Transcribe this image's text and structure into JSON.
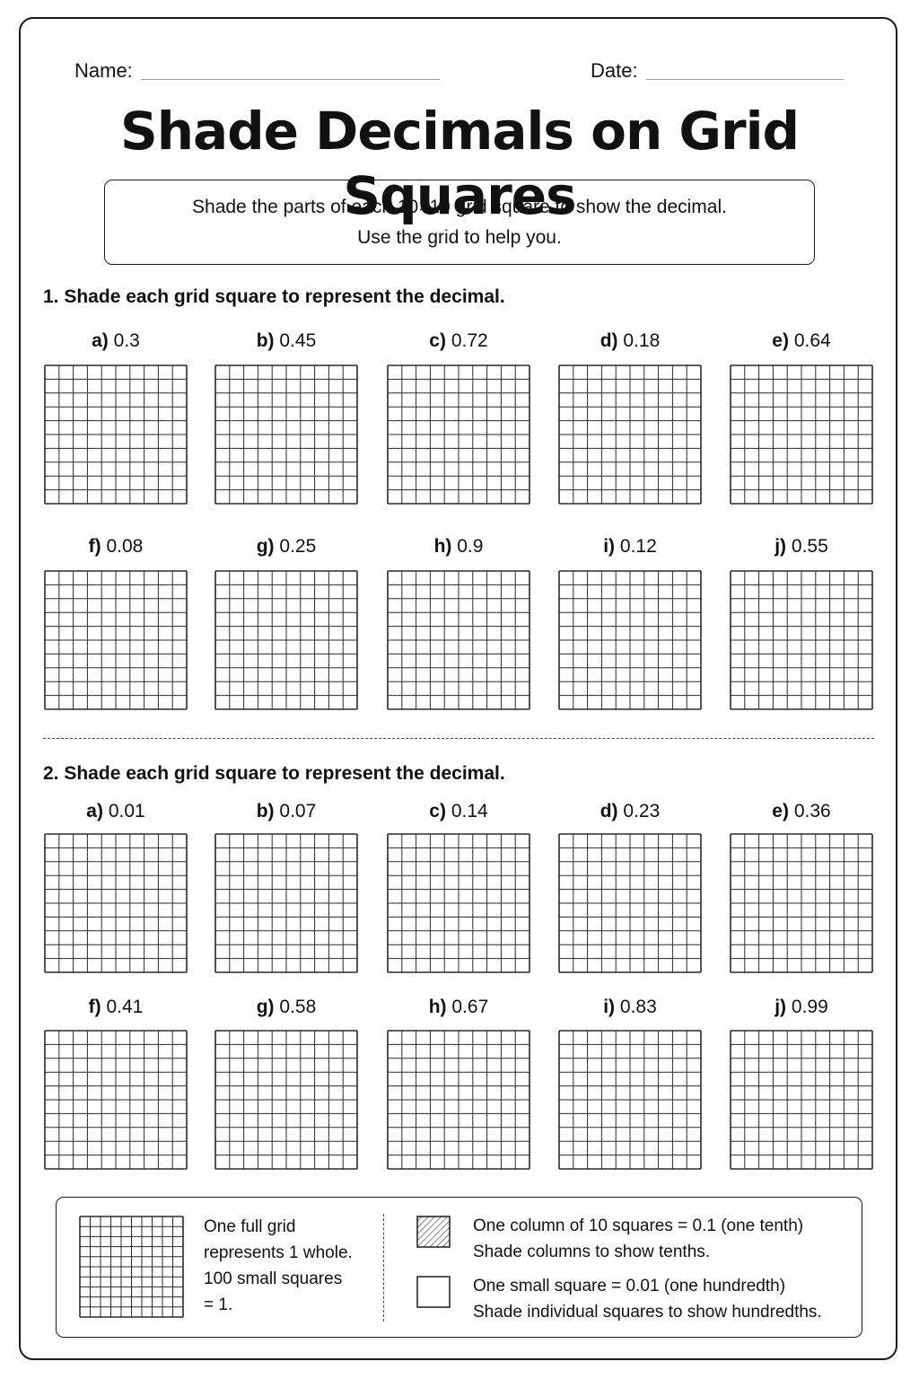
{
  "header": {
    "name_label": "Name:",
    "date_label": "Date:"
  },
  "title": "Shade Decimals on Grid Squares",
  "instructions": {
    "line1": "Shade the parts of each 10×10 grid square to show the decimal.",
    "line2": "Use the grid to help you."
  },
  "sections": [
    {
      "heading": "1. Shade each grid square to represent the decimal.",
      "problems": [
        {
          "letter": "a)",
          "value": "0.3"
        },
        {
          "letter": "b)",
          "value": "0.45"
        },
        {
          "letter": "c)",
          "value": "0.72"
        },
        {
          "letter": "d)",
          "value": "0.18"
        },
        {
          "letter": "e)",
          "value": "0.64"
        },
        {
          "letter": "f)",
          "value": "0.08"
        },
        {
          "letter": "g)",
          "value": "0.25"
        },
        {
          "letter": "h)",
          "value": "0.9"
        },
        {
          "letter": "i)",
          "value": "0.12"
        },
        {
          "letter": "j)",
          "value": "0.55"
        }
      ]
    },
    {
      "heading": "2. Shade each grid square to represent the decimal.",
      "problems": [
        {
          "letter": "a)",
          "value": "0.01"
        },
        {
          "letter": "b)",
          "value": "0.07"
        },
        {
          "letter": "c)",
          "value": "0.14"
        },
        {
          "letter": "d)",
          "value": "0.23"
        },
        {
          "letter": "e)",
          "value": "0.36"
        },
        {
          "letter": "f)",
          "value": "0.41"
        },
        {
          "letter": "g)",
          "value": "0.58"
        },
        {
          "letter": "h)",
          "value": "0.67"
        },
        {
          "letter": "i)",
          "value": "0.83"
        },
        {
          "letter": "j)",
          "value": "0.99"
        }
      ]
    }
  ],
  "legend": {
    "full_grid_lines": [
      "One full grid",
      "represents 1 whole.",
      "100 small squares",
      "= 1."
    ],
    "tenth_line1": "One column of 10 squares = 0.1 (one tenth)",
    "tenth_line2": "Shade columns to show tenths.",
    "hundredth_line1": "One small square = 0.01 (one hundredth)",
    "hundredth_line2": "Shade individual squares to show hundredths."
  }
}
